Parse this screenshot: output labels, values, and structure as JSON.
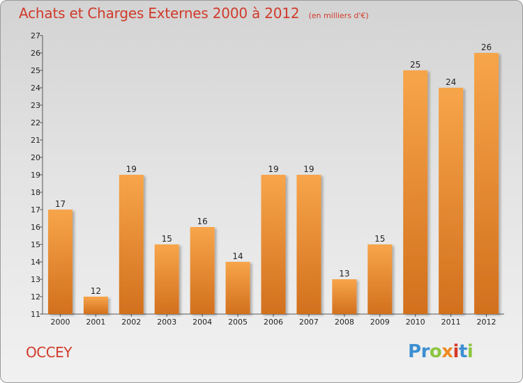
{
  "header": {
    "title": "Achats et Charges Externes 2000 à 2012",
    "subtitle": "(en milliers d'€)"
  },
  "footer": {
    "commune": "OCCEY",
    "logo_letters": [
      "P",
      "r",
      "o",
      "x",
      "i",
      "t",
      "i"
    ],
    "logo_colors": [
      "#3d8fd1",
      "#3d8fd1",
      "#8cc63f",
      "#f08a24",
      "#d63a2a",
      "#3d8fd1",
      "#8cc63f"
    ]
  },
  "chart_data": {
    "type": "bar",
    "title": "Achats et Charges Externes 2000 à 2012",
    "subtitle": "(en milliers d'€)",
    "categories": [
      "2000",
      "2001",
      "2002",
      "2003",
      "2004",
      "2005",
      "2006",
      "2007",
      "2008",
      "2009",
      "2010",
      "2011",
      "2012"
    ],
    "values": [
      17,
      12,
      19,
      15,
      16,
      14,
      19,
      19,
      13,
      15,
      25,
      24,
      26
    ],
    "ylim": [
      11,
      27
    ],
    "yticks": [
      "11",
      "12",
      "13",
      "14",
      "15",
      "16",
      "17",
      "18",
      "19",
      "20",
      "21",
      "22",
      "23",
      "24",
      "25",
      "26",
      "27"
    ],
    "grid": false,
    "bar_color_top": "#f7a54a",
    "bar_color_bottom": "#d2701e"
  }
}
